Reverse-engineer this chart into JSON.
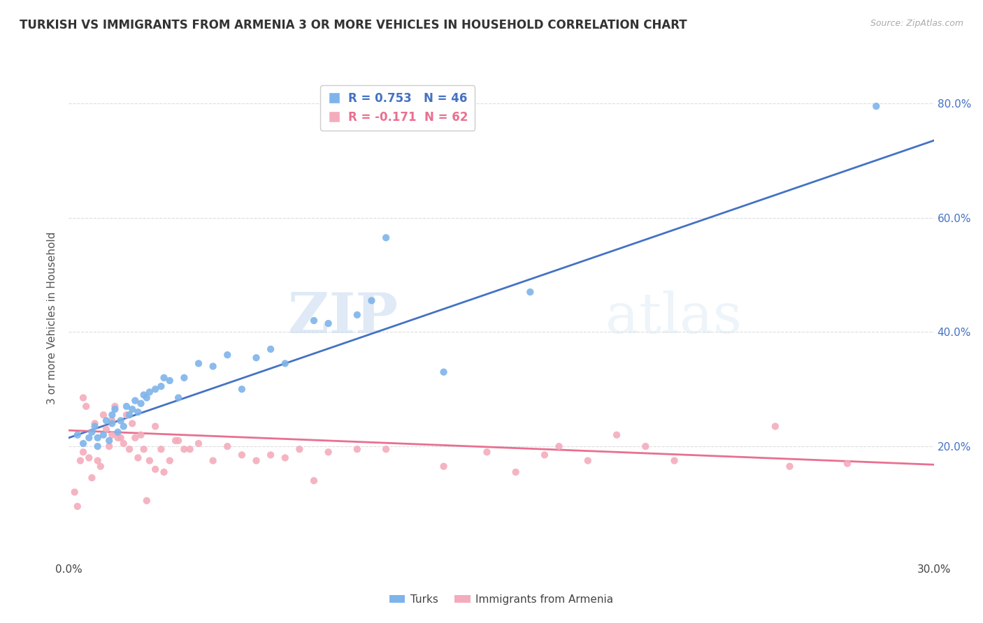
{
  "title": "TURKISH VS IMMIGRANTS FROM ARMENIA 3 OR MORE VEHICLES IN HOUSEHOLD CORRELATION CHART",
  "source": "Source: ZipAtlas.com",
  "ylabel": "3 or more Vehicles in Household",
  "xmin": 0.0,
  "xmax": 0.3,
  "ymin": 0.0,
  "ymax": 0.85,
  "xticks": [
    0.0,
    0.05,
    0.1,
    0.15,
    0.2,
    0.25,
    0.3
  ],
  "xtick_labels": [
    "0.0%",
    "",
    "",
    "",
    "",
    "",
    "30.0%"
  ],
  "ytick_positions": [
    0.2,
    0.4,
    0.6,
    0.8
  ],
  "ytick_labels": [
    "20.0%",
    "40.0%",
    "60.0%",
    "80.0%"
  ],
  "blue_R": 0.753,
  "blue_N": 46,
  "pink_R": -0.171,
  "pink_N": 62,
  "blue_color": "#7EB4EA",
  "pink_color": "#F4ACBC",
  "blue_line_color": "#4472C4",
  "pink_line_color": "#E87090",
  "watermark_zip": "ZIP",
  "watermark_atlas": "atlas",
  "legend_label_blue": "Turks",
  "legend_label_pink": "Immigrants from Armenia",
  "blue_scatter_x": [
    0.003,
    0.005,
    0.007,
    0.008,
    0.009,
    0.01,
    0.01,
    0.012,
    0.013,
    0.014,
    0.015,
    0.015,
    0.016,
    0.017,
    0.018,
    0.019,
    0.02,
    0.021,
    0.022,
    0.023,
    0.024,
    0.025,
    0.026,
    0.027,
    0.028,
    0.03,
    0.032,
    0.033,
    0.035,
    0.038,
    0.04,
    0.045,
    0.05,
    0.055,
    0.06,
    0.065,
    0.07,
    0.075,
    0.085,
    0.09,
    0.1,
    0.105,
    0.11,
    0.13,
    0.16,
    0.28
  ],
  "blue_scatter_y": [
    0.22,
    0.205,
    0.215,
    0.225,
    0.235,
    0.2,
    0.215,
    0.22,
    0.245,
    0.21,
    0.24,
    0.255,
    0.265,
    0.225,
    0.245,
    0.235,
    0.27,
    0.255,
    0.265,
    0.28,
    0.26,
    0.275,
    0.29,
    0.285,
    0.295,
    0.3,
    0.305,
    0.32,
    0.315,
    0.285,
    0.32,
    0.345,
    0.34,
    0.36,
    0.3,
    0.355,
    0.37,
    0.345,
    0.42,
    0.415,
    0.43,
    0.455,
    0.565,
    0.33,
    0.47,
    0.795
  ],
  "pink_scatter_x": [
    0.002,
    0.003,
    0.004,
    0.005,
    0.006,
    0.007,
    0.008,
    0.009,
    0.01,
    0.011,
    0.012,
    0.013,
    0.014,
    0.015,
    0.015,
    0.016,
    0.017,
    0.018,
    0.019,
    0.02,
    0.021,
    0.022,
    0.023,
    0.024,
    0.025,
    0.026,
    0.027,
    0.028,
    0.03,
    0.032,
    0.033,
    0.035,
    0.037,
    0.038,
    0.04,
    0.042,
    0.045,
    0.05,
    0.055,
    0.06,
    0.065,
    0.07,
    0.075,
    0.08,
    0.085,
    0.09,
    0.1,
    0.11,
    0.13,
    0.145,
    0.155,
    0.165,
    0.17,
    0.18,
    0.19,
    0.2,
    0.21,
    0.245,
    0.25,
    0.27,
    0.005,
    0.03
  ],
  "pink_scatter_y": [
    0.12,
    0.095,
    0.175,
    0.19,
    0.27,
    0.18,
    0.145,
    0.24,
    0.175,
    0.165,
    0.255,
    0.23,
    0.2,
    0.22,
    0.245,
    0.27,
    0.215,
    0.215,
    0.205,
    0.255,
    0.195,
    0.24,
    0.215,
    0.18,
    0.22,
    0.195,
    0.105,
    0.175,
    0.235,
    0.195,
    0.155,
    0.175,
    0.21,
    0.21,
    0.195,
    0.195,
    0.205,
    0.175,
    0.2,
    0.185,
    0.175,
    0.185,
    0.18,
    0.195,
    0.14,
    0.19,
    0.195,
    0.195,
    0.165,
    0.19,
    0.155,
    0.185,
    0.2,
    0.175,
    0.22,
    0.2,
    0.175,
    0.235,
    0.165,
    0.17,
    0.285,
    0.16
  ],
  "blue_trendline_x": [
    0.0,
    0.3
  ],
  "blue_trendline_y": [
    0.215,
    0.735
  ],
  "pink_trendline_x": [
    0.0,
    0.3
  ],
  "pink_trendline_y": [
    0.228,
    0.168
  ]
}
